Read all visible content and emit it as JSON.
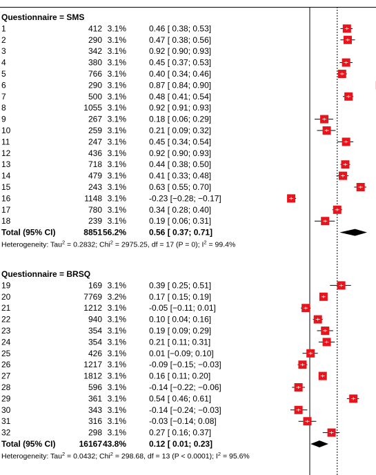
{
  "chart_data": {
    "type": "forest",
    "xlim": [
      -0.3,
      0.98
    ],
    "reference_lines": [
      {
        "x": 0,
        "style": "solid"
      },
      {
        "x": 0.34,
        "style": "dotted"
      }
    ],
    "colors": {
      "study_box": "#e8141b",
      "summary_diamond": "#000000",
      "axis_line": "#000000"
    },
    "groups": [
      {
        "title": "Questionnaire = SMS",
        "studies": [
          {
            "id": "1",
            "n": "412",
            "weight": "3.1%",
            "est_text": "0.46 [ 0.38;  0.53]",
            "est": 0.46,
            "lo": 0.38,
            "hi": 0.53
          },
          {
            "id": "2",
            "n": "290",
            "weight": "3.1%",
            "est_text": "0.47 [ 0.38;  0.56]",
            "est": 0.47,
            "lo": 0.38,
            "hi": 0.56
          },
          {
            "id": "3",
            "n": "342",
            "weight": "3.1%",
            "est_text": "0.92 [ 0.90;  0.93]",
            "est": 0.92,
            "lo": 0.9,
            "hi": 0.93
          },
          {
            "id": "4",
            "n": "380",
            "weight": "3.1%",
            "est_text": "0.45 [ 0.37;  0.53]",
            "est": 0.45,
            "lo": 0.37,
            "hi": 0.53
          },
          {
            "id": "5",
            "n": "766",
            "weight": "3.1%",
            "est_text": "0.40 [ 0.34;  0.46]",
            "est": 0.4,
            "lo": 0.34,
            "hi": 0.46
          },
          {
            "id": "6",
            "n": "290",
            "weight": "3.1%",
            "est_text": "0.87 [ 0.84;  0.90]",
            "est": 0.87,
            "lo": 0.84,
            "hi": 0.9
          },
          {
            "id": "7",
            "n": "500",
            "weight": "3.1%",
            "est_text": "0.48 [ 0.41;  0.54]",
            "est": 0.48,
            "lo": 0.41,
            "hi": 0.54
          },
          {
            "id": "8",
            "n": "1055",
            "weight": "3.1%",
            "est_text": "0.92 [ 0.91;  0.93]",
            "est": 0.92,
            "lo": 0.91,
            "hi": 0.93
          },
          {
            "id": "9",
            "n": "267",
            "weight": "3.1%",
            "est_text": "0.18 [ 0.06;  0.29]",
            "est": 0.18,
            "lo": 0.06,
            "hi": 0.29
          },
          {
            "id": "10",
            "n": "259",
            "weight": "3.1%",
            "est_text": "0.21 [ 0.09;  0.32]",
            "est": 0.21,
            "lo": 0.09,
            "hi": 0.32
          },
          {
            "id": "11",
            "n": "247",
            "weight": "3.1%",
            "est_text": "0.45 [ 0.34;  0.54]",
            "est": 0.45,
            "lo": 0.34,
            "hi": 0.54
          },
          {
            "id": "12",
            "n": "436",
            "weight": "3.1%",
            "est_text": "0.92 [ 0.90;  0.93]",
            "est": 0.92,
            "lo": 0.9,
            "hi": 0.93
          },
          {
            "id": "13",
            "n": "718",
            "weight": "3.1%",
            "est_text": "0.44 [ 0.38;  0.50]",
            "est": 0.44,
            "lo": 0.38,
            "hi": 0.5
          },
          {
            "id": "14",
            "n": "479",
            "weight": "3.1%",
            "est_text": "0.41 [ 0.33;  0.48]",
            "est": 0.41,
            "lo": 0.33,
            "hi": 0.48
          },
          {
            "id": "15",
            "n": "243",
            "weight": "3.1%",
            "est_text": "0.63 [ 0.55;  0.70]",
            "est": 0.63,
            "lo": 0.55,
            "hi": 0.7
          },
          {
            "id": "16",
            "n": "1148",
            "weight": "3.1%",
            "est_text": "-0.23 [−0.28; −0.17]",
            "est": -0.23,
            "lo": -0.28,
            "hi": -0.17
          },
          {
            "id": "17",
            "n": "780",
            "weight": "3.1%",
            "est_text": "0.34 [ 0.28;  0.40]",
            "est": 0.34,
            "lo": 0.28,
            "hi": 0.4
          },
          {
            "id": "18",
            "n": "239",
            "weight": "3.1%",
            "est_text": "0.19 [ 0.06;  0.31]",
            "est": 0.19,
            "lo": 0.06,
            "hi": 0.31
          }
        ],
        "total": {
          "label": "Total (95% CI)",
          "n": "8851",
          "weight": "56.2%",
          "est_text": "0.56 [ 0.37;  0.71]",
          "est": 0.56,
          "lo": 0.37,
          "hi": 0.71
        },
        "heterogeneity": {
          "tau2": "0.2832",
          "chi2": "2975.25",
          "df": "17",
          "p": "0",
          "i2": "99.4%"
        }
      },
      {
        "title": "Questionnaire = BRSQ",
        "studies": [
          {
            "id": "19",
            "n": "169",
            "weight": "3.1%",
            "est_text": "0.39 [ 0.25;  0.51]",
            "est": 0.39,
            "lo": 0.25,
            "hi": 0.51
          },
          {
            "id": "20",
            "n": "7769",
            "weight": "3.2%",
            "est_text": "0.17 [ 0.15;  0.19]",
            "est": 0.17,
            "lo": 0.15,
            "hi": 0.19
          },
          {
            "id": "21",
            "n": "1212",
            "weight": "3.1%",
            "est_text": "-0.05 [−0.11;  0.01]",
            "est": -0.05,
            "lo": -0.11,
            "hi": 0.01
          },
          {
            "id": "22",
            "n": "940",
            "weight": "3.1%",
            "est_text": "0.10 [ 0.04;  0.16]",
            "est": 0.1,
            "lo": 0.04,
            "hi": 0.16
          },
          {
            "id": "23",
            "n": "354",
            "weight": "3.1%",
            "est_text": "0.19 [ 0.09;  0.29]",
            "est": 0.19,
            "lo": 0.09,
            "hi": 0.29
          },
          {
            "id": "24",
            "n": "354",
            "weight": "3.1%",
            "est_text": "0.21 [ 0.11;  0.31]",
            "est": 0.21,
            "lo": 0.11,
            "hi": 0.31
          },
          {
            "id": "25",
            "n": "426",
            "weight": "3.1%",
            "est_text": "0.01 [−0.09;  0.10]",
            "est": 0.01,
            "lo": -0.09,
            "hi": 0.1
          },
          {
            "id": "26",
            "n": "1217",
            "weight": "3.1%",
            "est_text": "-0.09 [−0.15; −0.03]",
            "est": -0.09,
            "lo": -0.15,
            "hi": -0.03
          },
          {
            "id": "27",
            "n": "1812",
            "weight": "3.1%",
            "est_text": "0.16 [ 0.11;  0.20]",
            "est": 0.16,
            "lo": 0.11,
            "hi": 0.2
          },
          {
            "id": "28",
            "n": "596",
            "weight": "3.1%",
            "est_text": "-0.14 [−0.22; −0.06]",
            "est": -0.14,
            "lo": -0.22,
            "hi": -0.06
          },
          {
            "id": "29",
            "n": "361",
            "weight": "3.1%",
            "est_text": "0.54 [ 0.46;  0.61]",
            "est": 0.54,
            "lo": 0.46,
            "hi": 0.61
          },
          {
            "id": "30",
            "n": "343",
            "weight": "3.1%",
            "est_text": "-0.14 [−0.24; −0.03]",
            "est": -0.14,
            "lo": -0.24,
            "hi": -0.03
          },
          {
            "id": "31",
            "n": "316",
            "weight": "3.1%",
            "est_text": "-0.03 [−0.14;  0.08]",
            "est": -0.03,
            "lo": -0.14,
            "hi": 0.08
          },
          {
            "id": "32",
            "n": "298",
            "weight": "3.1%",
            "est_text": "0.27 [ 0.16;  0.37]",
            "est": 0.27,
            "lo": 0.16,
            "hi": 0.37
          }
        ],
        "total": {
          "label": "Total (95% CI)",
          "n": "16167",
          "weight": "43.8%",
          "est_text": "0.12 [ 0.01;  0.23]",
          "est": 0.12,
          "lo": 0.01,
          "hi": 0.23
        },
        "heterogeneity": {
          "tau2": "0.0432",
          "chi2": "298.68",
          "df": "13",
          "p": "< 0.0001",
          "i2": "95.6%"
        }
      }
    ]
  }
}
